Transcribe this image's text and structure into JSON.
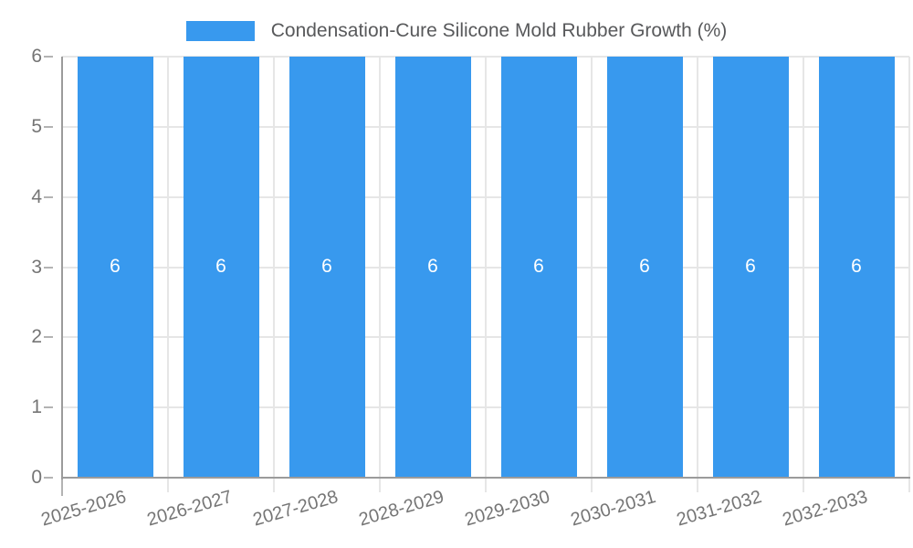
{
  "chart_data": {
    "type": "bar",
    "title": "Condensation-Cure Silicone Mold Rubber Growth (%)",
    "legend_position": "top",
    "legend": [
      {
        "label": "Condensation-Cure Silicone Mold Rubber Growth (%)",
        "color": "#3899ee"
      }
    ],
    "categories": [
      "2025-2026",
      "2026-2027",
      "2027-2028",
      "2028-2029",
      "2029-2030",
      "2030-2031",
      "2031-2032",
      "2032-2033"
    ],
    "series": [
      {
        "name": "Condensation-Cure Silicone Mold Rubber Growth (%)",
        "values": [
          6,
          6,
          6,
          6,
          6,
          6,
          6,
          6
        ]
      }
    ],
    "bar_value_labels": [
      "6",
      "6",
      "6",
      "6",
      "6",
      "6",
      "6",
      "6"
    ],
    "xlabel": "",
    "ylabel": "",
    "ylim": [
      0,
      6
    ],
    "y_ticks": [
      "0",
      "1",
      "2",
      "3",
      "4",
      "5",
      "6"
    ],
    "grid": true,
    "x_label_rotation_deg": -16,
    "colors": {
      "bar": "#3899ee",
      "grid": "#e6e6e6",
      "axis": "#9b9b9b",
      "tick": "#b3b3b3",
      "tick_label": "#757575",
      "title": "#58595b",
      "value_label": "#ffffff",
      "background": "#ffffff"
    }
  }
}
